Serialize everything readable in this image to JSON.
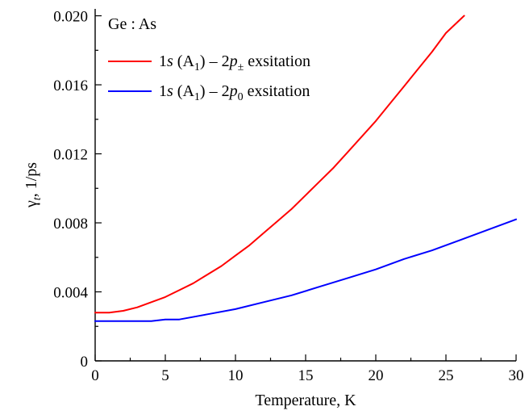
{
  "chart_data": {
    "type": "line",
    "title": "",
    "xlabel": "Temperature, K",
    "ylabel_main": "γ",
    "ylabel_sub": "t",
    "ylabel_rest": ", 1/ps",
    "xlim": [
      0,
      30
    ],
    "ylim": [
      0,
      0.0204
    ],
    "xticks": [
      0,
      5,
      10,
      15,
      20,
      25,
      30
    ],
    "xtick_labels": [
      "0",
      "5",
      "10",
      "15",
      "20",
      "25",
      "30"
    ],
    "yticks": [
      0,
      0.004,
      0.008,
      0.012,
      0.016,
      0.02
    ],
    "ytick_labels": [
      "0",
      "0.004",
      "0.008",
      "0.012",
      "0.016",
      "0.020"
    ],
    "grid": false,
    "legend": {
      "placement": "top-left",
      "header": "Ge : As",
      "entries": [
        {
          "pre": "1",
          "italic1": "s",
          "mid": " (A",
          "sub1": "1",
          "mid2": ") – 2",
          "italic2": "p",
          "sub2": "±",
          "post": " exsitation"
        },
        {
          "pre": "1",
          "italic1": "s",
          "mid": " (A",
          "sub1": "1",
          "mid2": ") – 2",
          "italic2": "p",
          "sub2": "0",
          "post": " exsitation"
        }
      ]
    },
    "series": [
      {
        "color": "#ff0000",
        "x": [
          0,
          1,
          2,
          3,
          4,
          5,
          6,
          7,
          8,
          9,
          10,
          11,
          12,
          13,
          14,
          15,
          16,
          17,
          18,
          19,
          20,
          21,
          22,
          23,
          24,
          25,
          26.3
        ],
        "y": [
          0.0028,
          0.0028,
          0.0029,
          0.0031,
          0.0034,
          0.0037,
          0.0041,
          0.0045,
          0.005,
          0.0055,
          0.0061,
          0.0067,
          0.0074,
          0.0081,
          0.0088,
          0.0096,
          0.0104,
          0.0112,
          0.0121,
          0.013,
          0.0139,
          0.0149,
          0.0159,
          0.0169,
          0.0179,
          0.019,
          0.02
        ]
      },
      {
        "color": "#0000ff",
        "x": [
          0,
          2,
          4,
          5,
          6,
          8,
          10,
          12,
          14,
          16,
          18,
          20,
          22,
          24,
          26,
          28,
          30
        ],
        "y": [
          0.0023,
          0.0023,
          0.0023,
          0.0024,
          0.0024,
          0.0027,
          0.003,
          0.0034,
          0.0038,
          0.0043,
          0.0048,
          0.0053,
          0.0059,
          0.0064,
          0.007,
          0.0076,
          0.0082
        ]
      }
    ]
  }
}
